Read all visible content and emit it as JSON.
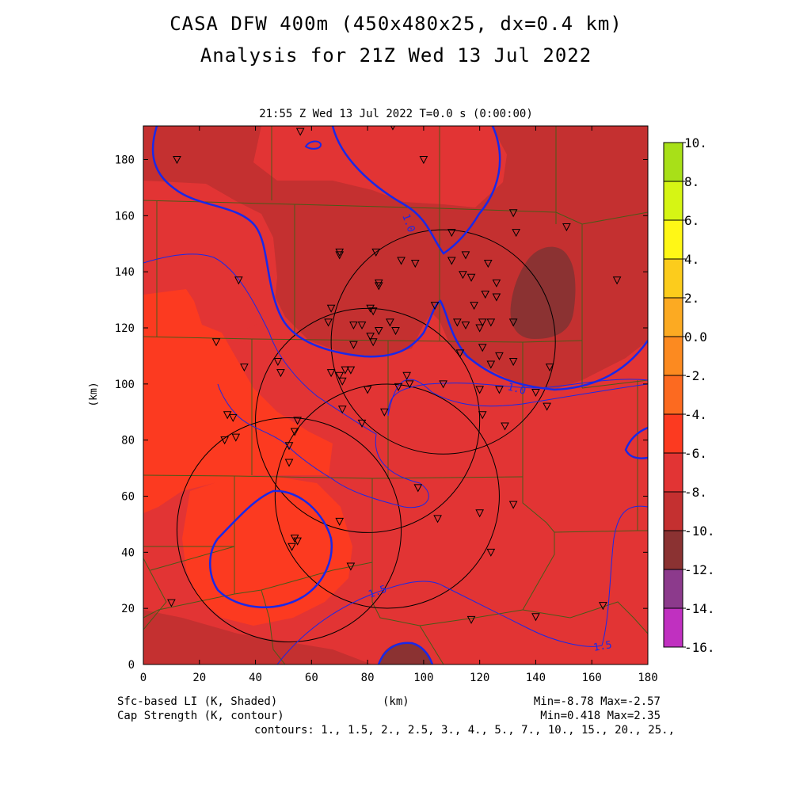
{
  "title_line1": "CASA DFW 400m (450x480x25, dx=0.4 km)",
  "title_line2": "Analysis for 21Z Wed 13 Jul 2022",
  "valid_time": "21:55 Z Wed 13 Jul 2022   T=0.0 s (0:00:00)",
  "x_axis_label": "(km)",
  "y_axis_label": "(km)",
  "x_ticks": [
    "0",
    "20",
    "40",
    "60",
    "80",
    "100",
    "120",
    "140",
    "160",
    "180"
  ],
  "y_ticks": [
    "0",
    "20",
    "40",
    "60",
    "80",
    "100",
    "120",
    "140",
    "160",
    "180"
  ],
  "colorbar": {
    "labels": [
      "10.",
      "8.",
      "6.",
      "4.",
      "2.",
      "0.0",
      "-2.",
      "-4.",
      "-6.",
      "-8.",
      "-10.",
      "-12.",
      "-14.",
      "-16."
    ],
    "colors": [
      "#a8e018",
      "#d6f514",
      "#fff716",
      "#fccc1c",
      "#fcaa22",
      "#fc8a20",
      "#fc6a20",
      "#fc3a20",
      "#e23434",
      "#c43030",
      "#8b3232",
      "#8c3a8c",
      "#c030c0",
      "#e040e0"
    ]
  },
  "fill_colors": {
    "below_minus8": "#8b3232",
    "minus8_to_minus6": "#c43030",
    "minus6_to_minus4": "#e23434",
    "minus4_to_minus2": "#fc3a20"
  },
  "contour_labels": [
    "1.0",
    "1.0",
    "1.5",
    "1.5"
  ],
  "footer": {
    "left1": "Sfc-based LI (K, Shaded)",
    "left2": "Cap Strength (K, contour)",
    "center": "(km)",
    "right1": "Min=-8.78 Max=-2.57",
    "right2": "Min=0.418 Max=2.35",
    "contours": "contours: 1., 1.5, 2., 2.5, 3., 4., 5., 7., 10., 15., 20., 25.,"
  },
  "radar_circles": [
    {
      "cx_km": 107,
      "cy_km": 115
    },
    {
      "cx_km": 80,
      "cy_km": 87
    },
    {
      "cx_km": 87,
      "cy_km": 60
    },
    {
      "cx_km": 52,
      "cy_km": 48
    }
  ],
  "stations_km": [
    [
      56,
      190
    ],
    [
      12,
      180
    ],
    [
      100,
      180
    ],
    [
      89,
      192
    ],
    [
      132,
      161
    ],
    [
      133,
      154
    ],
    [
      110,
      154
    ],
    [
      151,
      156
    ],
    [
      70,
      147
    ],
    [
      70,
      146
    ],
    [
      83,
      147
    ],
    [
      92,
      144
    ],
    [
      115,
      146
    ],
    [
      123,
      143
    ],
    [
      110,
      144
    ],
    [
      97,
      143
    ],
    [
      34,
      137
    ],
    [
      84,
      136
    ],
    [
      114,
      139
    ],
    [
      117,
      138
    ],
    [
      126,
      136
    ],
    [
      169,
      137
    ],
    [
      84,
      135
    ],
    [
      104,
      128
    ],
    [
      122,
      132
    ],
    [
      118,
      128
    ],
    [
      126,
      131
    ],
    [
      67,
      127
    ],
    [
      81,
      127
    ],
    [
      82,
      126
    ],
    [
      66,
      122
    ],
    [
      75,
      121
    ],
    [
      78,
      121
    ],
    [
      112,
      122
    ],
    [
      115,
      121
    ],
    [
      121,
      122
    ],
    [
      132,
      122
    ],
    [
      84,
      119
    ],
    [
      81,
      117
    ],
    [
      88,
      122
    ],
    [
      90,
      119
    ],
    [
      82,
      115
    ],
    [
      120,
      120
    ],
    [
      124,
      122
    ],
    [
      26,
      115
    ],
    [
      75,
      114
    ],
    [
      113,
      111
    ],
    [
      121,
      113
    ],
    [
      127,
      110
    ],
    [
      124,
      107
    ],
    [
      132,
      108
    ],
    [
      48,
      108
    ],
    [
      36,
      106
    ],
    [
      72,
      105
    ],
    [
      74,
      105
    ],
    [
      67,
      104
    ],
    [
      70,
      103
    ],
    [
      49,
      104
    ],
    [
      145,
      106
    ],
    [
      71,
      101
    ],
    [
      94,
      103
    ],
    [
      95,
      100
    ],
    [
      91,
      99
    ],
    [
      107,
      100
    ],
    [
      80,
      98
    ],
    [
      120,
      98
    ],
    [
      127,
      98
    ],
    [
      140,
      97
    ],
    [
      71,
      91
    ],
    [
      30,
      89
    ],
    [
      32,
      88
    ],
    [
      86,
      90
    ],
    [
      121,
      89
    ],
    [
      144,
      92
    ],
    [
      78,
      86
    ],
    [
      55,
      87
    ],
    [
      54,
      83
    ],
    [
      29,
      80
    ],
    [
      33,
      81
    ],
    [
      129,
      85
    ],
    [
      52,
      78
    ],
    [
      52,
      72
    ],
    [
      98,
      63
    ],
    [
      132,
      57
    ],
    [
      120,
      54
    ],
    [
      70,
      51
    ],
    [
      105,
      52
    ],
    [
      54,
      45
    ],
    [
      55,
      44
    ],
    [
      53,
      42
    ],
    [
      124,
      40
    ],
    [
      74,
      35
    ],
    [
      10,
      22
    ],
    [
      140,
      17
    ],
    [
      164,
      21
    ],
    [
      117,
      16
    ]
  ]
}
